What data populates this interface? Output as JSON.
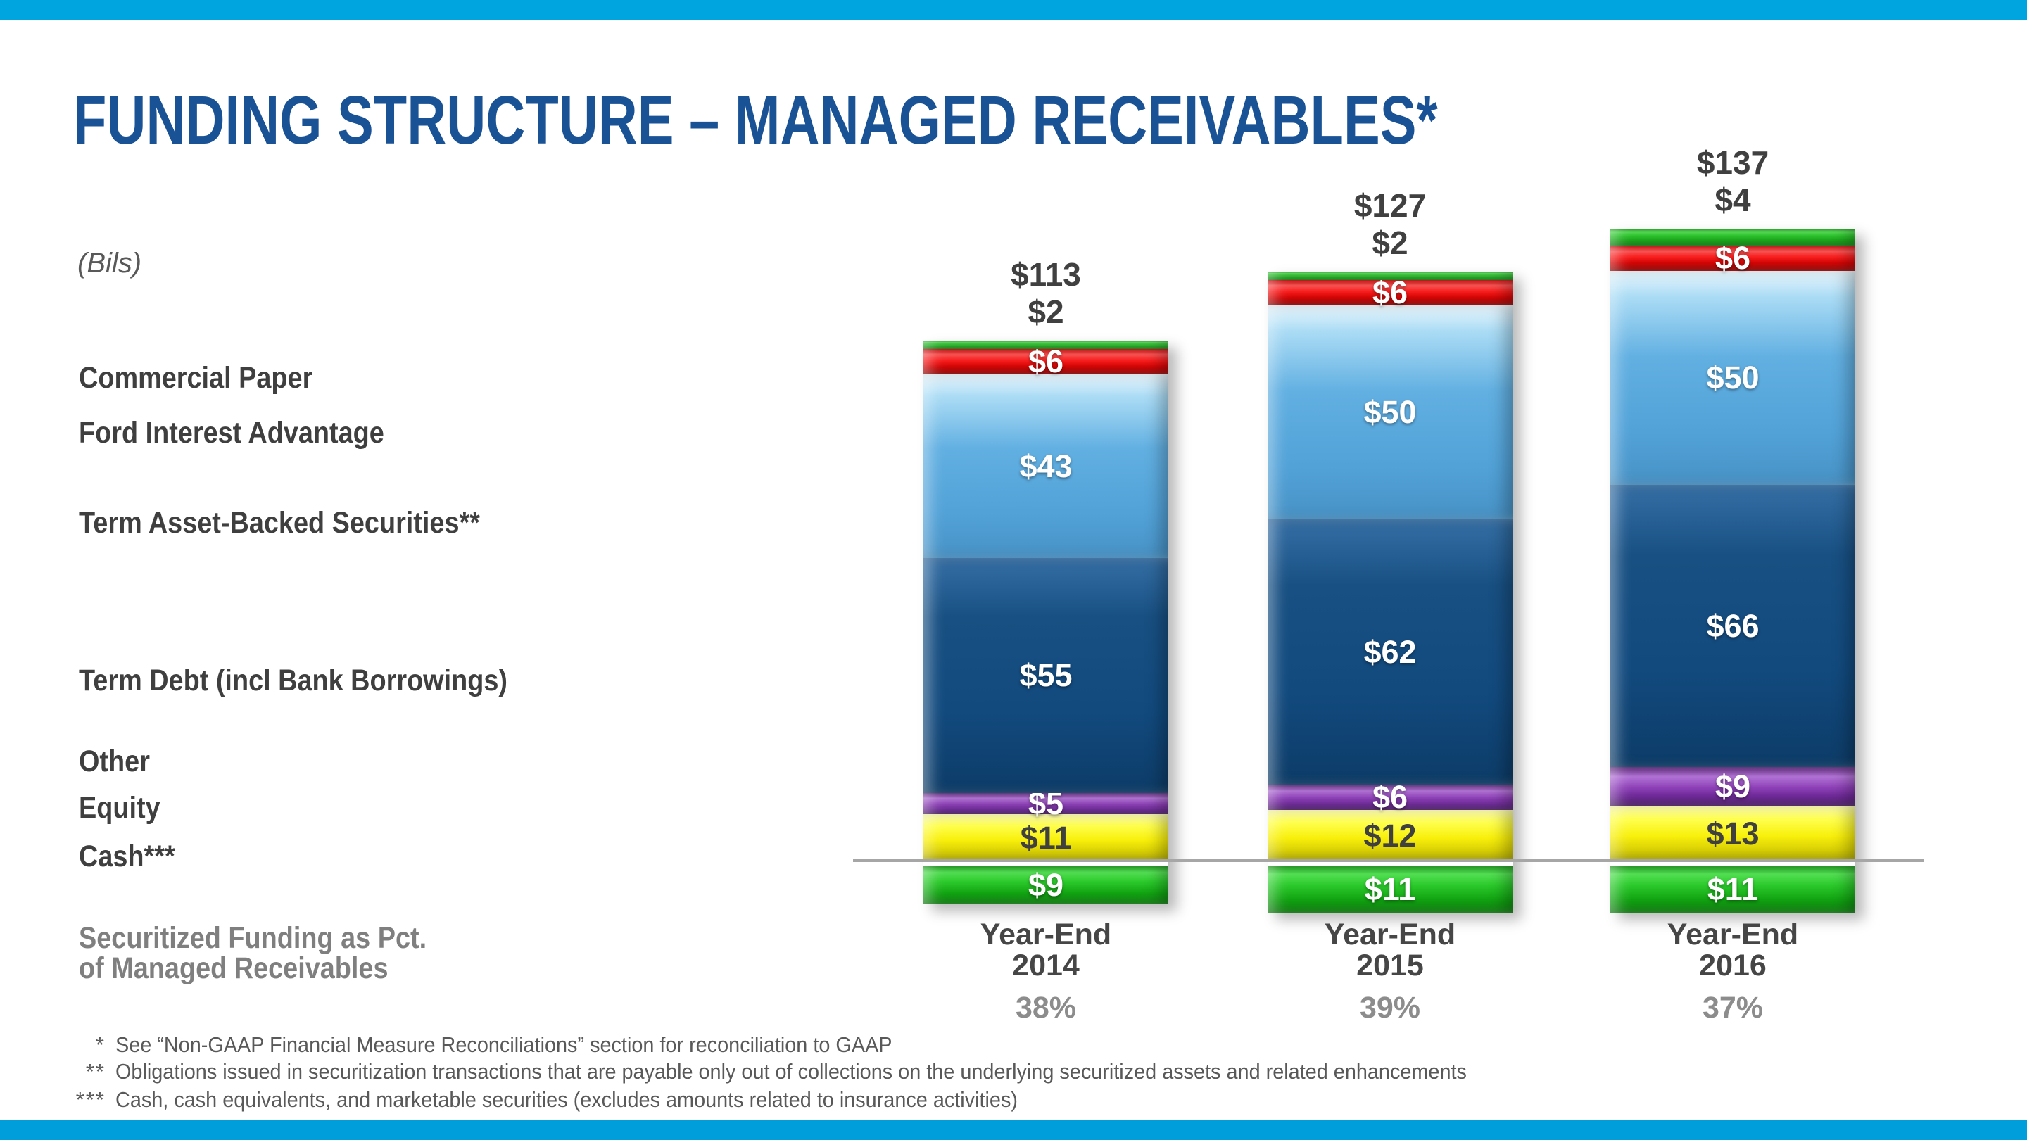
{
  "page": {
    "title": "FUNDING STRUCTURE – MANAGED RECEIVABLES*",
    "units_label": "(Bils)"
  },
  "theme": {
    "accent_cyan": "#00A5DF",
    "title_blue": "#1A5296",
    "label_gray": "#3F3F3F",
    "muted_gray": "#7F7F7F",
    "axis_line_gray": "#A6A6A6",
    "series_colors": {
      "green": "#12A412",
      "red": "#E81010",
      "light_blue": "#58A9DE",
      "dark_blue": "#134A7E",
      "purple": "#7B2FA8",
      "yellow": "#F5EA00"
    }
  },
  "chart_data": {
    "type": "bar",
    "stacked": true,
    "units": "$ Billions",
    "categories": [
      {
        "line1": "Year-End",
        "line2": "2014"
      },
      {
        "line1": "Year-End",
        "line2": "2015"
      },
      {
        "line1": "Year-End",
        "line2": "2016"
      }
    ],
    "totals": [
      113,
      127,
      137
    ],
    "series": [
      {
        "name": "Commercial Paper",
        "color": "green",
        "values": [
          2,
          2,
          4
        ],
        "label_position": "above-bar"
      },
      {
        "name": "Ford Interest Advantage",
        "color": "red",
        "values": [
          6,
          6,
          6
        ],
        "label_position": "inside"
      },
      {
        "name": "Term Asset-Backed Securities**",
        "color": "light_blue",
        "values": [
          43,
          50,
          50
        ],
        "label_position": "inside"
      },
      {
        "name": "Term Debt (incl Bank Borrowings)",
        "color": "dark_blue",
        "values": [
          55,
          62,
          66
        ],
        "label_position": "inside"
      },
      {
        "name": "Other",
        "color": "purple",
        "values": [
          5,
          6,
          9
        ],
        "label_position": "inside"
      },
      {
        "name": "Equity",
        "color": "yellow",
        "values": [
          11,
          12,
          13
        ],
        "label_position": "inside"
      },
      {
        "name": "Cash***",
        "color": "green",
        "values": [
          9,
          11,
          11
        ],
        "label_position": "inside",
        "below_baseline": true
      }
    ],
    "secondary_metric": {
      "label_line1": "Securitized Funding as Pct.",
      "label_line2": "of Managed Receivables",
      "values": [
        "38%",
        "39%",
        "37%"
      ]
    },
    "legend_position": "left",
    "grid": false
  },
  "footnotes": [
    {
      "marker": "*",
      "text": "See “Non-GAAP Financial Measure Reconciliations” section for reconciliation to GAAP"
    },
    {
      "marker": "**",
      "text": "Obligations issued in securitization transactions that are payable only out of collections on the underlying securitized assets and related enhancements"
    },
    {
      "marker": "***",
      "text": "Cash, cash equivalents, and marketable securities (excludes amounts related to insurance activities)"
    }
  ]
}
